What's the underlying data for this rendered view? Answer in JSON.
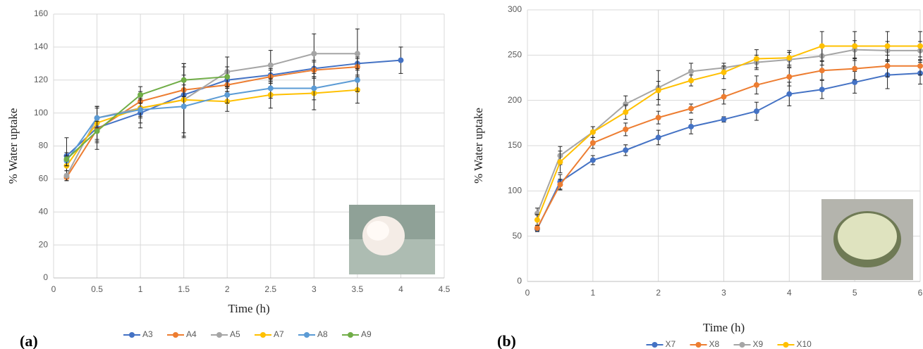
{
  "chart_data": [
    {
      "type": "line",
      "panel_label": "(a)",
      "y_title": "% Water uptake",
      "x_title": "Time (h)",
      "xlim": [
        0,
        4.5
      ],
      "xticks": [
        0,
        0.5,
        1,
        1.5,
        2,
        2.5,
        3,
        3.5,
        4,
        4.5
      ],
      "ylim": [
        0,
        160
      ],
      "yticks": [
        0,
        20,
        40,
        60,
        80,
        100,
        120,
        140,
        160
      ],
      "grid": true,
      "x": [
        0.15,
        0.5,
        1,
        1.5,
        2,
        2.5,
        3,
        3.5,
        4
      ],
      "series": [
        {
          "name": "A3",
          "color": "#4472c4",
          "values": [
            74,
            91,
            100,
            111,
            120,
            123,
            127,
            130,
            132
          ],
          "errors": [
            11,
            13,
            9,
            6,
            5,
            4,
            5,
            4,
            8
          ]
        },
        {
          "name": "A4",
          "color": "#ed7d31",
          "values": [
            61,
            90,
            107,
            114,
            117,
            122,
            126,
            128,
            null
          ],
          "errors": [
            2,
            8,
            6,
            5,
            4,
            4,
            5,
            5,
            null
          ]
        },
        {
          "name": "A5",
          "color": "#a5a5a5",
          "values": [
            62,
            97,
            103,
            108,
            125,
            129,
            136,
            136,
            null
          ],
          "errors": [
            3,
            6,
            5,
            22,
            9,
            9,
            12,
            15,
            null
          ]
        },
        {
          "name": "A7",
          "color": "#ffc000",
          "values": [
            68,
            94,
            103,
            108,
            107,
            111,
            112,
            114,
            null
          ],
          "errors": [
            3,
            10,
            6,
            20,
            6,
            8,
            10,
            8,
            null
          ]
        },
        {
          "name": "A8",
          "color": "#5b9bd5",
          "values": [
            71,
            97,
            102,
            104,
            111,
            115,
            115,
            120,
            null
          ],
          "errors": [
            3,
            7,
            8,
            19,
            5,
            6,
            7,
            7,
            null
          ]
        },
        {
          "name": "A9",
          "color": "#70ad47",
          "values": [
            72,
            89,
            111,
            120,
            122,
            null,
            null,
            null,
            null
          ],
          "errors": [
            4,
            6,
            5,
            10,
            6,
            null,
            null,
            null,
            null
          ]
        }
      ]
    },
    {
      "type": "line",
      "panel_label": "(b)",
      "y_title": "% Water uptake",
      "x_title": "Time (h)",
      "xlim": [
        0,
        6
      ],
      "xticks": [
        0,
        1,
        2,
        3,
        4,
        5,
        6
      ],
      "ylim": [
        0,
        300
      ],
      "yticks": [
        0,
        50,
        100,
        150,
        200,
        250,
        300
      ],
      "grid": true,
      "x": [
        0.15,
        0.5,
        1,
        1.5,
        2,
        2.5,
        3,
        3.5,
        4,
        4.5,
        5,
        5.5,
        6
      ],
      "series": [
        {
          "name": "X7",
          "color": "#4472c4",
          "values": [
            58,
            110,
            134,
            145,
            159,
            171,
            179,
            188,
            207,
            212,
            220,
            228,
            230
          ],
          "errors": [
            3,
            8,
            5,
            6,
            8,
            8,
            3,
            10,
            13,
            10,
            12,
            15,
            12
          ]
        },
        {
          "name": "X8",
          "color": "#ed7d31",
          "values": [
            59,
            107,
            153,
            168,
            181,
            191,
            204,
            217,
            226,
            233,
            235,
            238,
            238
          ],
          "errors": [
            3,
            6,
            6,
            7,
            7,
            5,
            8,
            10,
            10,
            10,
            12,
            12,
            10
          ]
        },
        {
          "name": "X9",
          "color": "#a5a5a5",
          "values": [
            75,
            139,
            165,
            196,
            214,
            232,
            236,
            242,
            245,
            249,
            256,
            255,
            255
          ],
          "errors": [
            6,
            10,
            6,
            9,
            19,
            9,
            5,
            8,
            8,
            10,
            10,
            10,
            10
          ]
        },
        {
          "name": "X10",
          "color": "#ffc000",
          "values": [
            68,
            132,
            165,
            187,
            211,
            222,
            231,
            246,
            247,
            260,
            260,
            260,
            260
          ],
          "errors": [
            6,
            12,
            6,
            8,
            10,
            6,
            7,
            10,
            8,
            16,
            16,
            16,
            16
          ]
        }
      ]
    }
  ]
}
